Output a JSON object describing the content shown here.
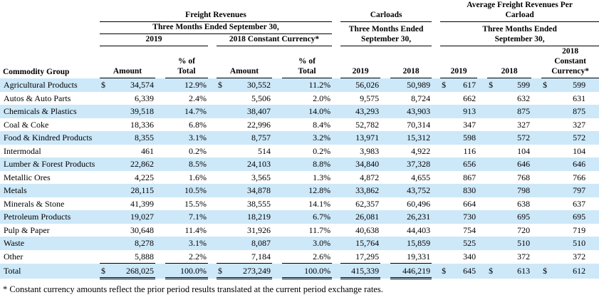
{
  "colors": {
    "row_shade": "#cde8f8",
    "border": "#000000",
    "text": "#000000",
    "background": "#ffffff"
  },
  "headers": {
    "commodity_group": "Commodity Group",
    "freight_revenues": "Freight Revenues",
    "carloads": "Carloads",
    "avg_freight": "Average Freight Revenues Per\nCarload",
    "fr_period": "Three Months Ended September 30,",
    "period_two_line": "Three Months Ended\nSeptember 30,",
    "col_2019": "2019",
    "col_2018": "2018",
    "col_2018_cc": "2018 Constant Currency*",
    "col_2018_cc_stacked": "2018\nConstant\nCurrency*",
    "amount": "Amount",
    "pct_of_total": "% of\nTotal"
  },
  "rows": [
    {
      "label": "Agricultural Products",
      "fr2019_dollar": "$",
      "fr2019_amount": "34,574",
      "fr2019_pct": "12.9%",
      "fr2018cc_dollar": "$",
      "fr2018cc_amount": "30,552",
      "fr2018cc_pct": "11.2%",
      "carloads_2019": "56,026",
      "carloads_2018": "50,989",
      "avg2019_dollar": "$",
      "avg2019": "617",
      "avg2018_dollar": "$",
      "avg2018": "599",
      "avg2018cc_dollar": "$",
      "avg2018cc": "599"
    },
    {
      "label": "Autos & Auto Parts",
      "fr2019_amount": "6,339",
      "fr2019_pct": "2.4%",
      "fr2018cc_amount": "5,506",
      "fr2018cc_pct": "2.0%",
      "carloads_2019": "9,575",
      "carloads_2018": "8,724",
      "avg2019": "662",
      "avg2018": "632",
      "avg2018cc": "631"
    },
    {
      "label": "Chemicals & Plastics",
      "fr2019_amount": "39,518",
      "fr2019_pct": "14.7%",
      "fr2018cc_amount": "38,407",
      "fr2018cc_pct": "14.0%",
      "carloads_2019": "43,293",
      "carloads_2018": "43,903",
      "avg2019": "913",
      "avg2018": "875",
      "avg2018cc": "875"
    },
    {
      "label": "Coal & Coke",
      "fr2019_amount": "18,336",
      "fr2019_pct": "6.8%",
      "fr2018cc_amount": "22,996",
      "fr2018cc_pct": "8.4%",
      "carloads_2019": "52,782",
      "carloads_2018": "70,314",
      "avg2019": "347",
      "avg2018": "327",
      "avg2018cc": "327"
    },
    {
      "label": "Food & Kindred Products",
      "fr2019_amount": "8,355",
      "fr2019_pct": "3.1%",
      "fr2018cc_amount": "8,757",
      "fr2018cc_pct": "3.2%",
      "carloads_2019": "13,971",
      "carloads_2018": "15,312",
      "avg2019": "598",
      "avg2018": "572",
      "avg2018cc": "572"
    },
    {
      "label": "Intermodal",
      "fr2019_amount": "461",
      "fr2019_pct": "0.2%",
      "fr2018cc_amount": "514",
      "fr2018cc_pct": "0.2%",
      "carloads_2019": "3,983",
      "carloads_2018": "4,922",
      "avg2019": "116",
      "avg2018": "104",
      "avg2018cc": "104"
    },
    {
      "label": "Lumber & Forest Products",
      "fr2019_amount": "22,862",
      "fr2019_pct": "8.5%",
      "fr2018cc_amount": "24,103",
      "fr2018cc_pct": "8.8%",
      "carloads_2019": "34,840",
      "carloads_2018": "37,328",
      "avg2019": "656",
      "avg2018": "646",
      "avg2018cc": "646"
    },
    {
      "label": "Metallic Ores",
      "fr2019_amount": "4,225",
      "fr2019_pct": "1.6%",
      "fr2018cc_amount": "3,565",
      "fr2018cc_pct": "1.3%",
      "carloads_2019": "4,872",
      "carloads_2018": "4,655",
      "avg2019": "867",
      "avg2018": "768",
      "avg2018cc": "766"
    },
    {
      "label": "Metals",
      "fr2019_amount": "28,115",
      "fr2019_pct": "10.5%",
      "fr2018cc_amount": "34,878",
      "fr2018cc_pct": "12.8%",
      "carloads_2019": "33,862",
      "carloads_2018": "43,752",
      "avg2019": "830",
      "avg2018": "798",
      "avg2018cc": "797"
    },
    {
      "label": "Minerals & Stone",
      "fr2019_amount": "41,399",
      "fr2019_pct": "15.5%",
      "fr2018cc_amount": "38,555",
      "fr2018cc_pct": "14.1%",
      "carloads_2019": "62,357",
      "carloads_2018": "60,496",
      "avg2019": "664",
      "avg2018": "638",
      "avg2018cc": "637"
    },
    {
      "label": "Petroleum Products",
      "fr2019_amount": "19,027",
      "fr2019_pct": "7.1%",
      "fr2018cc_amount": "18,219",
      "fr2018cc_pct": "6.7%",
      "carloads_2019": "26,081",
      "carloads_2018": "26,231",
      "avg2019": "730",
      "avg2018": "695",
      "avg2018cc": "695"
    },
    {
      "label": "Pulp & Paper",
      "fr2019_amount": "30,648",
      "fr2019_pct": "11.4%",
      "fr2018cc_amount": "31,926",
      "fr2018cc_pct": "11.7%",
      "carloads_2019": "40,638",
      "carloads_2018": "44,403",
      "avg2019": "754",
      "avg2018": "720",
      "avg2018cc": "719"
    },
    {
      "label": "Waste",
      "fr2019_amount": "8,278",
      "fr2019_pct": "3.1%",
      "fr2018cc_amount": "8,087",
      "fr2018cc_pct": "3.0%",
      "carloads_2019": "15,764",
      "carloads_2018": "15,859",
      "avg2019": "525",
      "avg2018": "510",
      "avg2018cc": "510"
    },
    {
      "label": "Other",
      "fr2019_amount": "5,888",
      "fr2019_pct": "2.2%",
      "fr2018cc_amount": "7,184",
      "fr2018cc_pct": "2.6%",
      "carloads_2019": "17,295",
      "carloads_2018": "19,331",
      "avg2019": "340",
      "avg2018": "372",
      "avg2018cc": "372"
    }
  ],
  "total_row": {
    "label": "Total",
    "fr2019_dollar": "$",
    "fr2019_amount": "268,025",
    "fr2019_pct": "100.0%",
    "fr2018cc_dollar": "$",
    "fr2018cc_amount": "273,249",
    "fr2018cc_pct": "100.0%",
    "carloads_2019": "415,339",
    "carloads_2018": "446,219",
    "avg2019_dollar": "$",
    "avg2019": "645",
    "avg2018_dollar": "$",
    "avg2018": "613",
    "avg2018cc_dollar": "$",
    "avg2018cc": "612"
  },
  "footnote": "* Constant currency amounts reflect the prior period results translated at the current period exchange rates."
}
